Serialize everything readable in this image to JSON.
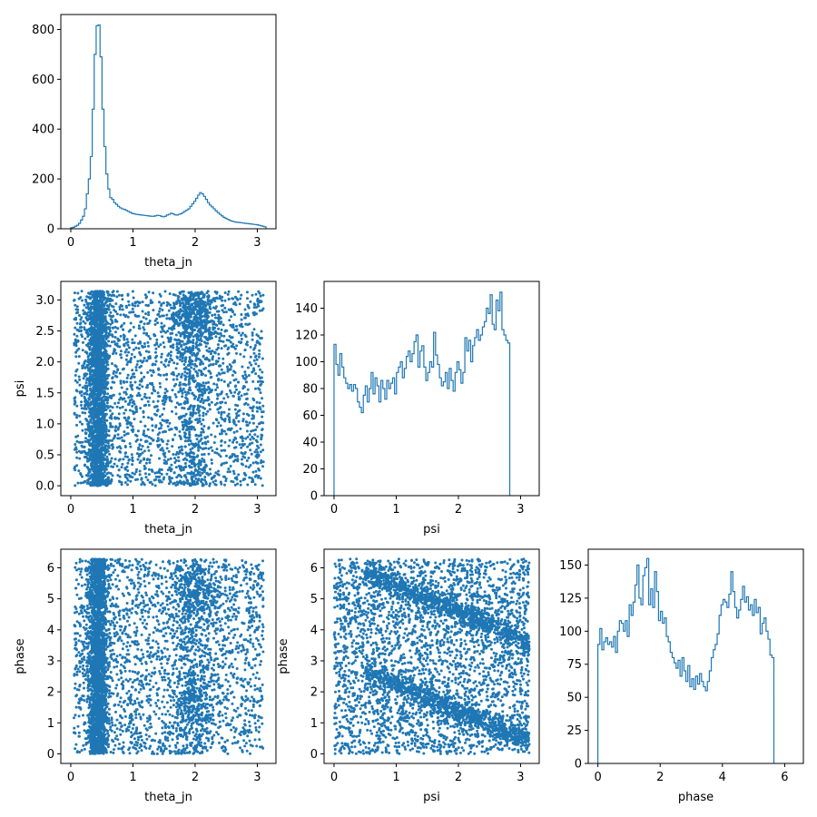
{
  "figure": {
    "type": "corner-plot",
    "accent": "#1f77b4",
    "grid": false
  },
  "chart_data": [
    {
      "id": "hist-theta",
      "type": "histogram",
      "xlabel": "theta_jn",
      "ylabel": "",
      "xlim": [
        -0.16,
        3.3
      ],
      "ylim": [
        0,
        860
      ],
      "xticks": [
        0,
        1,
        2,
        3
      ],
      "xtick_labels": [
        "0",
        "1",
        "2",
        "3"
      ],
      "yticks": [
        0,
        200,
        400,
        600,
        800
      ],
      "ytick_labels": [
        "0",
        "200",
        "400",
        "600",
        "800"
      ],
      "bin_start": 0.0,
      "bin_width": 0.0314,
      "values": [
        4,
        6,
        10,
        14,
        22,
        35,
        50,
        80,
        140,
        200,
        290,
        480,
        700,
        815,
        818,
        690,
        480,
        330,
        220,
        160,
        125,
        118,
        105,
        98,
        90,
        84,
        80,
        78,
        74,
        70,
        66,
        62,
        60,
        58,
        57,
        56,
        55,
        54,
        53,
        52,
        51,
        50,
        50,
        52,
        54,
        53,
        50,
        48,
        50,
        55,
        58,
        62,
        60,
        56,
        55,
        58,
        60,
        65,
        70,
        75,
        80,
        90,
        100,
        110,
        122,
        135,
        145,
        140,
        130,
        118,
        105,
        95,
        88,
        80,
        72,
        65,
        58,
        52,
        46,
        42,
        38,
        34,
        31,
        29,
        27,
        26,
        25,
        24,
        23,
        22,
        21,
        20,
        19,
        18,
        17,
        16,
        14,
        12,
        10,
        8
      ]
    },
    {
      "id": "scatter-theta-psi",
      "type": "scatter",
      "xlabel": "theta_jn",
      "ylabel": "psi",
      "xlim": [
        -0.16,
        3.3
      ],
      "ylim": [
        -0.16,
        3.3
      ],
      "xticks": [
        0,
        1,
        2,
        3
      ],
      "xtick_labels": [
        "0",
        "1",
        "2",
        "3"
      ],
      "yticks": [
        0.0,
        0.5,
        1.0,
        1.5,
        2.0,
        2.5,
        3.0
      ],
      "ytick_labels": [
        "0.0",
        "0.5",
        "1.0",
        "1.5",
        "2.0",
        "2.5",
        "3.0"
      ],
      "n_points": 5000,
      "marker_size": 1.5
    },
    {
      "id": "hist-psi",
      "type": "histogram",
      "xlabel": "psi",
      "ylabel": "",
      "xlim": [
        -0.16,
        3.3
      ],
      "ylim": [
        0,
        160
      ],
      "xticks": [
        0,
        1,
        2,
        3
      ],
      "xtick_labels": [
        "0",
        "1",
        "2",
        "3"
      ],
      "yticks": [
        0,
        20,
        40,
        60,
        80,
        100,
        120,
        140
      ],
      "ytick_labels": [
        "0",
        "20",
        "40",
        "60",
        "80",
        "100",
        "120",
        "140"
      ],
      "bin_start": 0.0,
      "bin_width": 0.0314,
      "values": [
        113,
        98,
        90,
        106,
        96,
        88,
        84,
        80,
        83,
        78,
        83,
        80,
        70,
        66,
        62,
        75,
        82,
        70,
        80,
        92,
        76,
        88,
        82,
        70,
        86,
        80,
        72,
        86,
        80,
        84,
        88,
        76,
        92,
        96,
        100,
        88,
        95,
        104,
        108,
        100,
        106,
        115,
        120,
        96,
        108,
        112,
        96,
        86,
        92,
        100,
        96,
        122,
        105,
        98,
        88,
        82,
        85,
        92,
        80,
        95,
        86,
        78,
        92,
        100,
        94,
        84,
        92,
        118,
        108,
        116,
        100,
        112,
        118,
        124,
        116,
        120,
        126,
        130,
        140,
        136,
        150,
        128,
        124,
        146,
        138,
        152,
        124,
        120,
        116,
        114
      ]
    },
    {
      "id": "scatter-theta-phase",
      "type": "scatter",
      "xlabel": "theta_jn",
      "ylabel": "phase",
      "xlim": [
        -0.16,
        3.3
      ],
      "ylim": [
        -0.31,
        6.6
      ],
      "xticks": [
        0,
        1,
        2,
        3
      ],
      "xtick_labels": [
        "0",
        "1",
        "2",
        "3"
      ],
      "yticks": [
        0,
        1,
        2,
        3,
        4,
        5,
        6
      ],
      "ytick_labels": [
        "0",
        "1",
        "2",
        "3",
        "4",
        "5",
        "6"
      ],
      "n_points": 5000,
      "marker_size": 1.5
    },
    {
      "id": "scatter-psi-phase",
      "type": "scatter",
      "xlabel": "psi",
      "ylabel": "phase",
      "xlim": [
        -0.16,
        3.3
      ],
      "ylim": [
        -0.31,
        6.6
      ],
      "xticks": [
        0,
        1,
        2,
        3
      ],
      "xtick_labels": [
        "0",
        "1",
        "2",
        "3"
      ],
      "yticks": [
        0,
        1,
        2,
        3,
        4,
        5,
        6
      ],
      "ytick_labels": [
        "0",
        "1",
        "2",
        "3",
        "4",
        "5",
        "6"
      ],
      "n_points": 5000,
      "marker_size": 1.5
    },
    {
      "id": "hist-phase",
      "type": "histogram",
      "xlabel": "phase",
      "ylabel": "",
      "xlim": [
        -0.31,
        6.6
      ],
      "ylim": [
        0,
        162
      ],
      "xticks": [
        0,
        2,
        4,
        6
      ],
      "xtick_labels": [
        "0",
        "2",
        "4",
        "6"
      ],
      "yticks": [
        0,
        25,
        50,
        75,
        100,
        125,
        150
      ],
      "ytick_labels": [
        "0",
        "25",
        "50",
        "75",
        "100",
        "125",
        "150"
      ],
      "bin_start": 0.0,
      "bin_width": 0.0628,
      "values": [
        90,
        102,
        86,
        92,
        95,
        90,
        92,
        88,
        96,
        84,
        100,
        108,
        106,
        100,
        108,
        96,
        120,
        112,
        122,
        135,
        150,
        125,
        120,
        142,
        148,
        155,
        120,
        132,
        118,
        145,
        130,
        108,
        115,
        106,
        110,
        96,
        92,
        84,
        80,
        76,
        72,
        78,
        66,
        80,
        70,
        62,
        74,
        58,
        64,
        56,
        66,
        60,
        68,
        62,
        58,
        55,
        62,
        70,
        80,
        86,
        90,
        98,
        112,
        120,
        124,
        122,
        118,
        128,
        145,
        130,
        118,
        110,
        116,
        124,
        134,
        122,
        126,
        116,
        120,
        112,
        124,
        114,
        118,
        98,
        106,
        110,
        100,
        94,
        82,
        80
      ]
    }
  ]
}
